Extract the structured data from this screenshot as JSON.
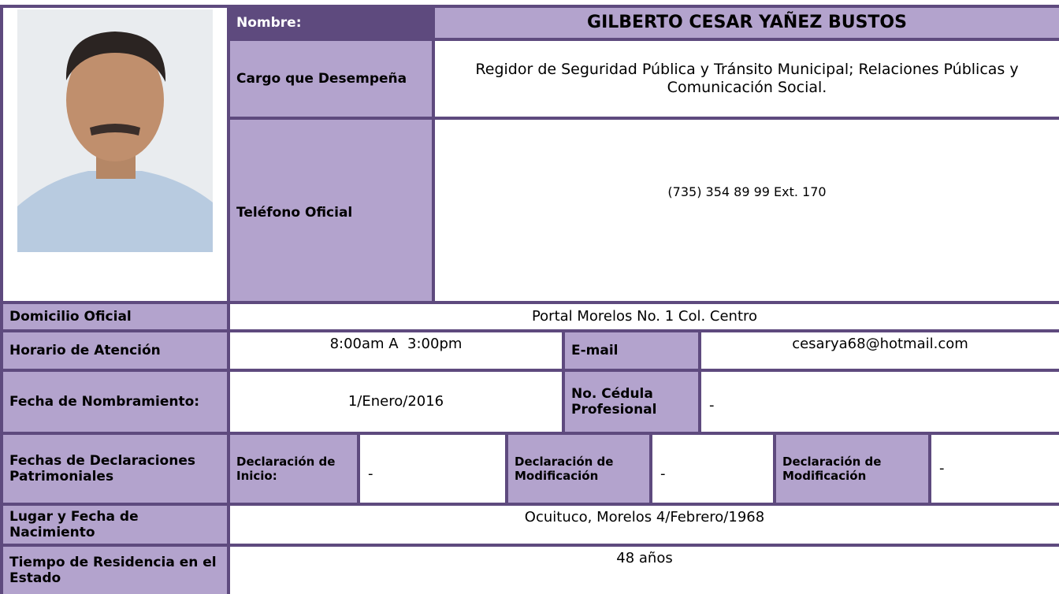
{
  "nombre_label": "Nombre:",
  "nombre": "GILBERTO CESAR YAÑEZ BUSTOS",
  "cargo_label": "Cargo que Desempeña",
  "cargo": "Regidor de Seguridad Pública y Tránsito Municipal; Relaciones Públicas y Comunicación Social.",
  "telefono_label": "Teléfono Oficial",
  "telefono": "(735) 354 89 99 Ext. 170",
  "domicilio_label": "Domicilio Oficial",
  "domicilio": "Portal Morelos No. 1 Col. Centro",
  "horario_label": "Horario de Atención",
  "horario": "8:00am A  3:00pm",
  "email_label": "E-mail",
  "email": "cesarya68@hotmail.com",
  "fecha_nombramiento_label": "Fecha de Nombramiento:",
  "fecha_nombramiento": "1/Enero/2016",
  "cedula_label": "No. Cédula Profesional",
  "cedula": "-",
  "declaraciones_label": "Fechas de Declaraciones Patrimoniales",
  "declaraciones": [
    {
      "label": "Declaración de Inicio:",
      "value": "-"
    },
    {
      "label": "Declaración de Modificación",
      "value": "-"
    },
    {
      "label": "Declaración de Modificación",
      "value": "-"
    }
  ],
  "nacimiento_label": "Lugar y Fecha de Nacimiento",
  "nacimiento": "Ocuituco, Morelos 4/Febrero/1968",
  "residencia_label": "Tiempo de Residencia en el Estado",
  "residencia": "48 años"
}
